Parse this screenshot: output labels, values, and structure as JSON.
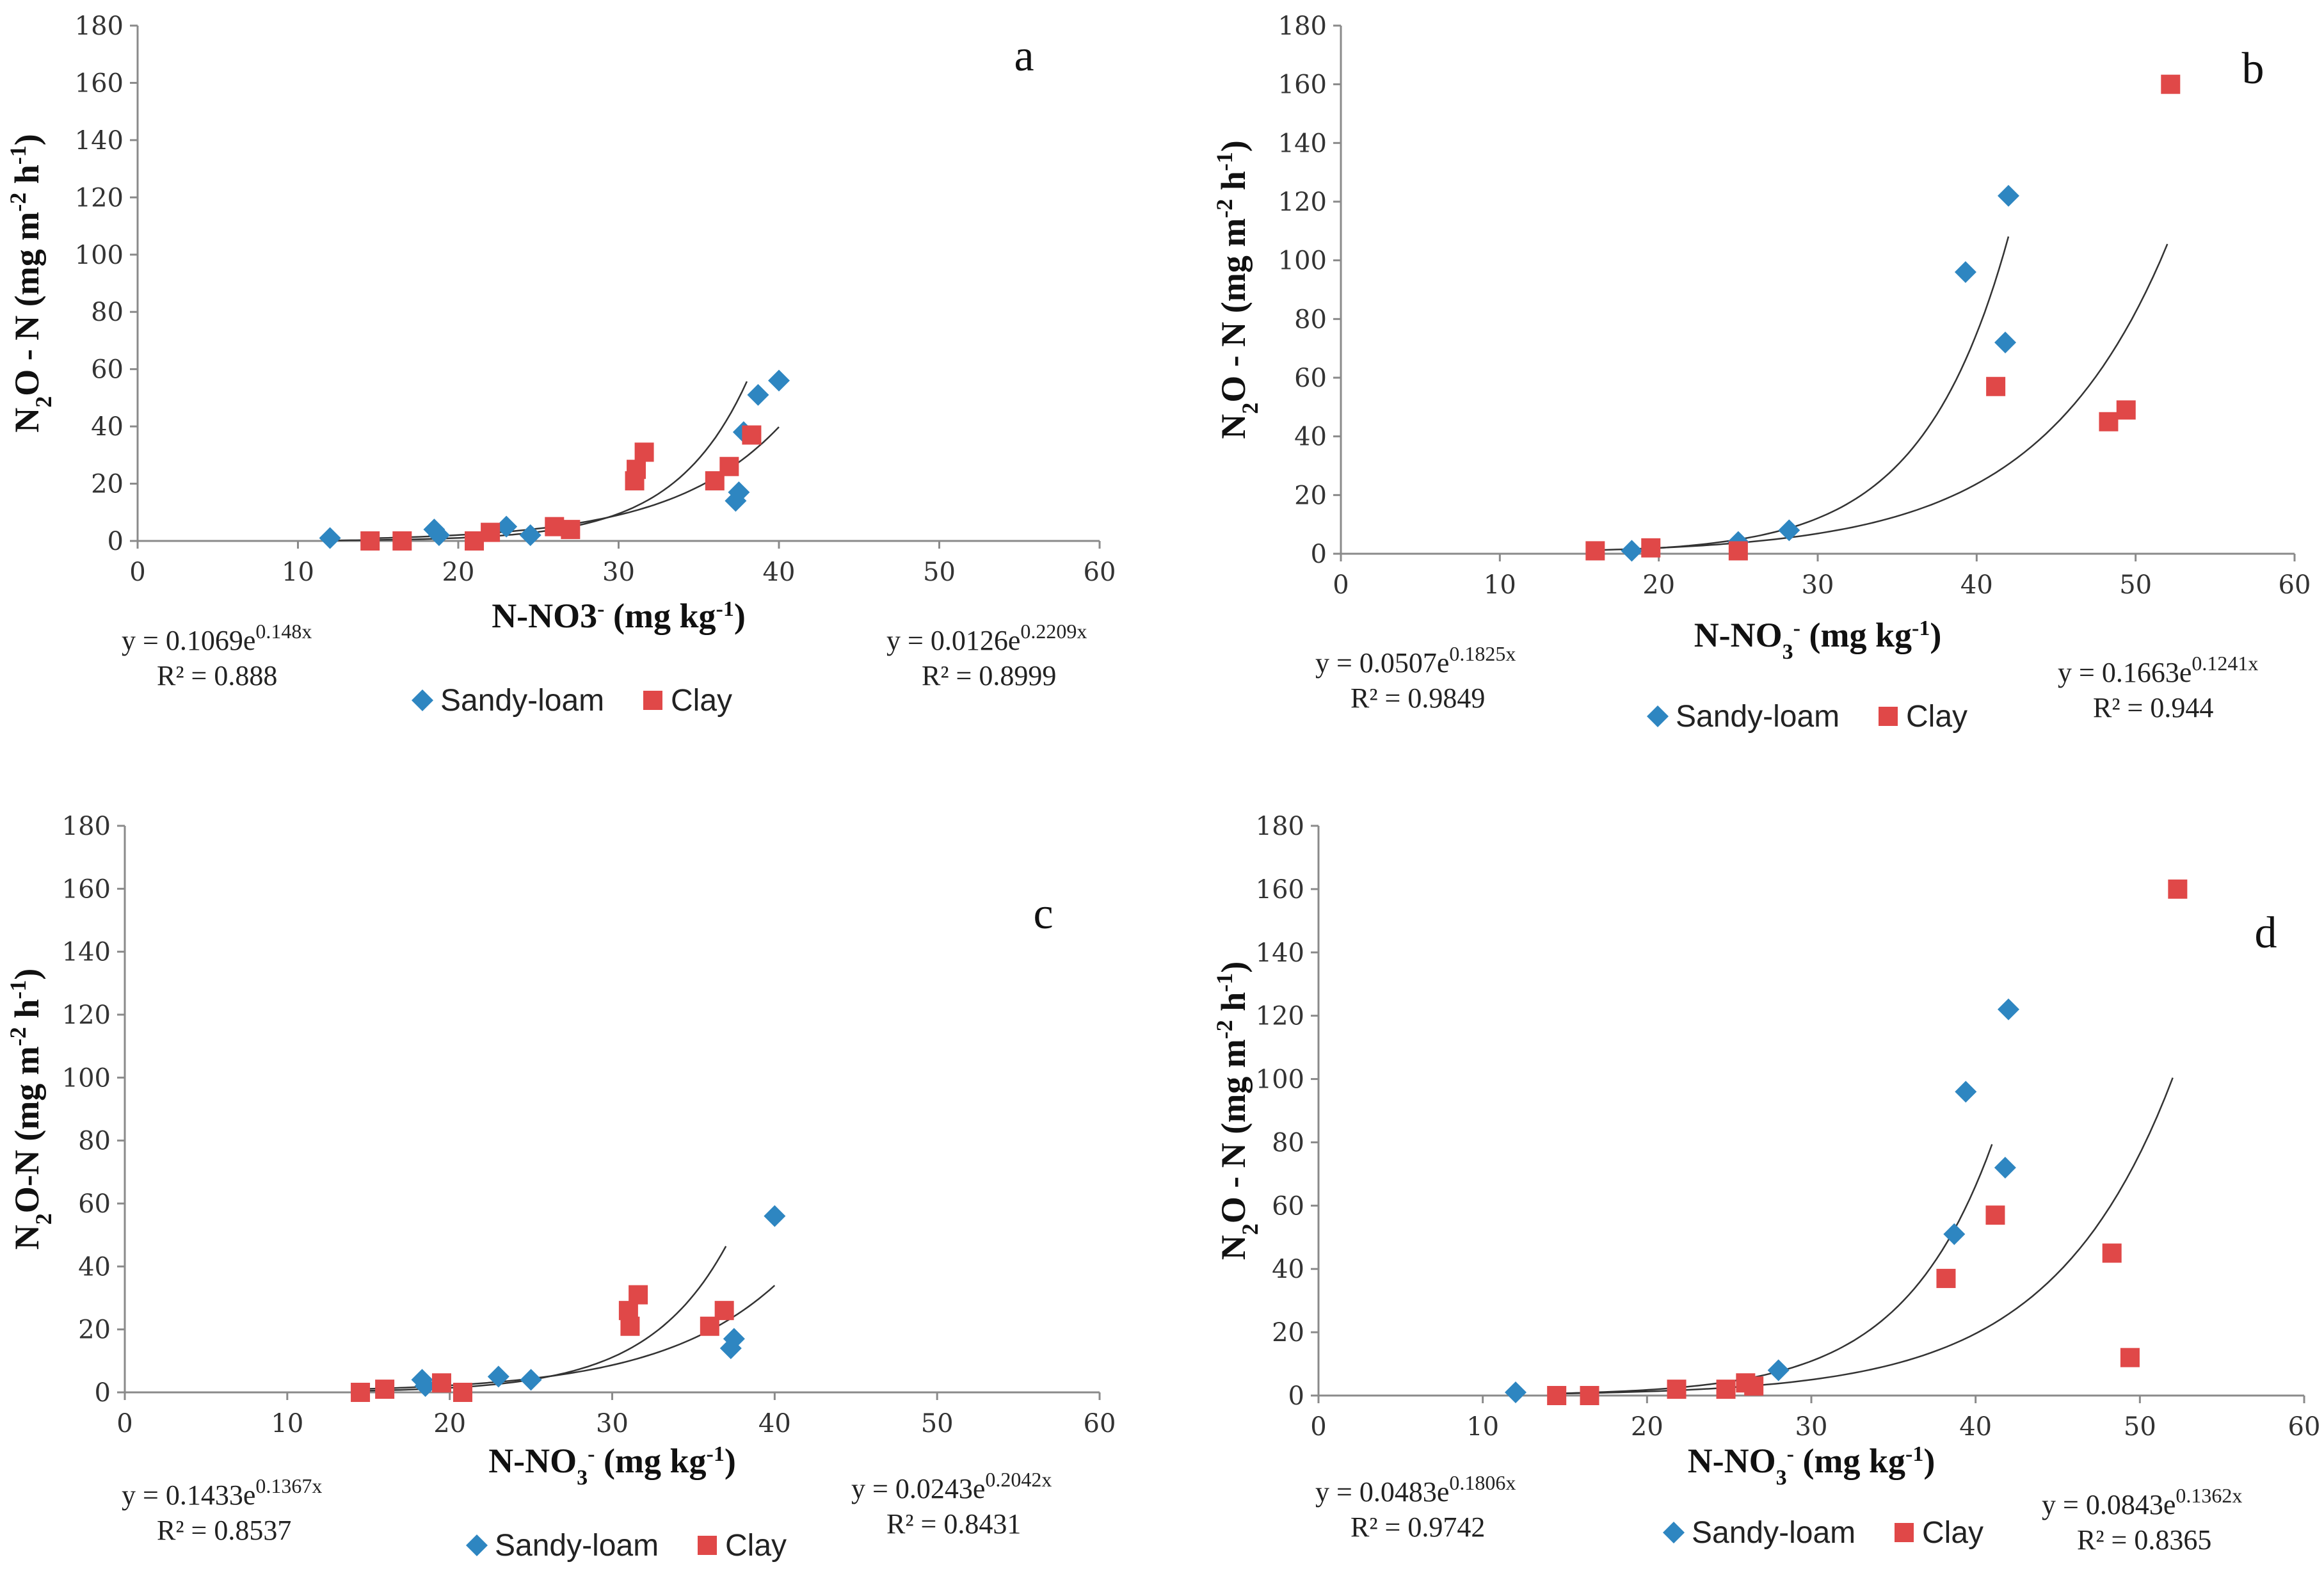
{
  "colors": {
    "sandy": "#2E86C1",
    "clay": "#E04848",
    "trend": "#333333",
    "axis": "#8a8a8a"
  },
  "chart_data": [
    {
      "type": "scatter",
      "panel": "a",
      "xlabel_main": "N-NO3",
      "xlabel_sup": "-",
      "xlabel_unit": " (mg kg",
      "xlabel_unit_sup": "-1",
      "xlabel_close": ")",
      "ylabel": "N2O - N (mg m-2 h-1)",
      "xlim": [
        0,
        60
      ],
      "ylim": [
        0,
        180
      ],
      "xticks": [
        0,
        10,
        20,
        30,
        40,
        50,
        60
      ],
      "yticks": [
        0,
        20,
        40,
        60,
        80,
        100,
        120,
        140,
        160,
        180
      ],
      "series": [
        {
          "name": "Sandy-loam",
          "marker": "diamond",
          "points": [
            [
              12,
              1
            ],
            [
              18.5,
              4
            ],
            [
              18.8,
              2
            ],
            [
              23,
              5
            ],
            [
              24.5,
              2
            ],
            [
              37.3,
              14
            ],
            [
              37.5,
              17
            ],
            [
              37.8,
              38
            ],
            [
              38.7,
              51
            ],
            [
              40,
              56
            ]
          ],
          "fit": {
            "a": 0.0126,
            "b": 0.2209,
            "xrange": [
              12,
              38
            ],
            "eq": "y = 0.0126e",
            "exp": "0.2209x",
            "r2": "R² = 0.8999",
            "side": "right"
          }
        },
        {
          "name": "Clay",
          "marker": "square",
          "points": [
            [
              14.5,
              0
            ],
            [
              16.5,
              0
            ],
            [
              21,
              0
            ],
            [
              22,
              3
            ],
            [
              26,
              5
            ],
            [
              27,
              4
            ],
            [
              31,
              21
            ],
            [
              31.1,
              25
            ],
            [
              31.6,
              31
            ],
            [
              36,
              21
            ],
            [
              36.9,
              26
            ],
            [
              38.3,
              37
            ]
          ],
          "fit": {
            "a": 0.1069,
            "b": 0.148,
            "xrange": [
              14,
              40
            ],
            "eq": "y = 0.1069e",
            "exp": "0.148x",
            "r2": "R² = 0.888",
            "side": "left"
          }
        }
      ]
    },
    {
      "type": "scatter",
      "panel": "b",
      "xlabel_main": "N-NO",
      "xlabel_sub": "3",
      "xlabel_sup": "-",
      "xlabel_unit": " (mg kg",
      "xlabel_unit_sup": "-1",
      "xlabel_close": ")",
      "ylabel": "N2O - N (mg m-2 h-1)",
      "xlim": [
        0,
        60
      ],
      "ylim": [
        0,
        180
      ],
      "xticks": [
        0,
        10,
        20,
        30,
        40,
        50,
        60
      ],
      "yticks": [
        0,
        20,
        40,
        60,
        80,
        100,
        120,
        140,
        160,
        180
      ],
      "series": [
        {
          "name": "Sandy-loam",
          "marker": "diamond",
          "points": [
            [
              18.3,
              1
            ],
            [
              25,
              4
            ],
            [
              28.2,
              8
            ],
            [
              39.3,
              96
            ],
            [
              41.8,
              72
            ],
            [
              42,
              122
            ]
          ],
          "fit": {
            "a": 0.0507,
            "b": 0.1825,
            "xrange": [
              18,
              42
            ],
            "eq": "y = 0.0507e",
            "exp": "0.1825x",
            "r2": "R² = 0.9849",
            "side": "left"
          }
        },
        {
          "name": "Clay",
          "marker": "square",
          "points": [
            [
              16,
              1
            ],
            [
              19.5,
              2
            ],
            [
              25,
              1
            ],
            [
              41.2,
              57
            ],
            [
              48.3,
              45
            ],
            [
              49.4,
              49
            ],
            [
              52.2,
              160
            ]
          ],
          "fit": {
            "a": 0.1663,
            "b": 0.1241,
            "xrange": [
              16,
              52
            ],
            "eq": "y = 0.1663e",
            "exp": "0.1241x",
            "r2": "R² = 0.944",
            "side": "right"
          }
        }
      ]
    },
    {
      "type": "scatter",
      "panel": "c",
      "xlabel_main": "N-NO",
      "xlabel_sub": "3",
      "xlabel_sup": "-",
      "xlabel_unit": " (mg kg",
      "xlabel_unit_sup": "-1",
      "xlabel_close": ")",
      "ylabel": "N2O-N (mg m-2 h-1)",
      "xlim": [
        0,
        60
      ],
      "ylim": [
        0,
        180
      ],
      "xticks": [
        0,
        10,
        20,
        30,
        40,
        50,
        60
      ],
      "yticks": [
        0,
        20,
        40,
        60,
        80,
        100,
        120,
        140,
        160,
        180
      ],
      "series": [
        {
          "name": "Sandy-loam",
          "marker": "diamond",
          "points": [
            [
              18.3,
              4
            ],
            [
              18.5,
              2
            ],
            [
              23,
              5
            ],
            [
              25,
              4
            ],
            [
              37.3,
              14
            ],
            [
              37.5,
              17
            ],
            [
              40,
              56
            ]
          ],
          "fit": {
            "a": 0.0243,
            "b": 0.2042,
            "xrange": [
              15,
              37
            ],
            "eq": "y = 0.0243e",
            "exp": "0.2042x",
            "r2": "R² = 0.8431",
            "side": "right"
          }
        },
        {
          "name": "Clay",
          "marker": "square",
          "points": [
            [
              14.5,
              0
            ],
            [
              16,
              1
            ],
            [
              19.5,
              3
            ],
            [
              20.8,
              0
            ],
            [
              31,
              26
            ],
            [
              31.1,
              21
            ],
            [
              31.6,
              31
            ],
            [
              36,
              21
            ],
            [
              36.9,
              26
            ]
          ],
          "fit": {
            "a": 0.1433,
            "b": 0.1367,
            "xrange": [
              14,
              40
            ],
            "eq": "y = 0.1433e",
            "exp": "0.1367x",
            "r2": "R² = 0.8537",
            "side": "left"
          }
        }
      ]
    },
    {
      "type": "scatter",
      "panel": "d",
      "xlabel_main": "N-NO",
      "xlabel_sub": "3",
      "xlabel_sup": "-",
      "xlabel_unit": " (mg kg",
      "xlabel_unit_sup": "-1",
      "xlabel_close": ")",
      "ylabel": "N2O - N (mg m-2 h-1)",
      "xlim": [
        0,
        60
      ],
      "ylim": [
        0,
        180
      ],
      "xticks": [
        0,
        10,
        20,
        30,
        40,
        50,
        60
      ],
      "yticks": [
        0,
        20,
        40,
        60,
        80,
        100,
        120,
        140,
        160,
        180
      ],
      "series": [
        {
          "name": "Sandy-loam",
          "marker": "diamond",
          "points": [
            [
              12,
              1
            ],
            [
              28,
              8
            ],
            [
              38.7,
              51
            ],
            [
              39.4,
              96
            ],
            [
              41.8,
              72
            ],
            [
              42,
              122
            ]
          ],
          "fit": {
            "a": 0.0483,
            "b": 0.1806,
            "xrange": [
              14,
              41
            ],
            "eq": "y = 0.0483e",
            "exp": "0.1806x",
            "r2": "R² = 0.9742",
            "side": "left"
          }
        },
        {
          "name": "Clay",
          "marker": "square",
          "points": [
            [
              14.5,
              0
            ],
            [
              16.5,
              0
            ],
            [
              21.8,
              2
            ],
            [
              24.8,
              2
            ],
            [
              26,
              4
            ],
            [
              26.5,
              3
            ],
            [
              38.2,
              37
            ],
            [
              41.2,
              57
            ],
            [
              48.3,
              45
            ],
            [
              49.4,
              12
            ],
            [
              52.3,
              160
            ]
          ],
          "fit": {
            "a": 0.0843,
            "b": 0.1362,
            "xrange": [
              14,
              52
            ],
            "eq": "y = 0.0843e",
            "exp": "0.1362x",
            "r2": "R² = 0.8365",
            "side": "right"
          }
        }
      ]
    }
  ]
}
